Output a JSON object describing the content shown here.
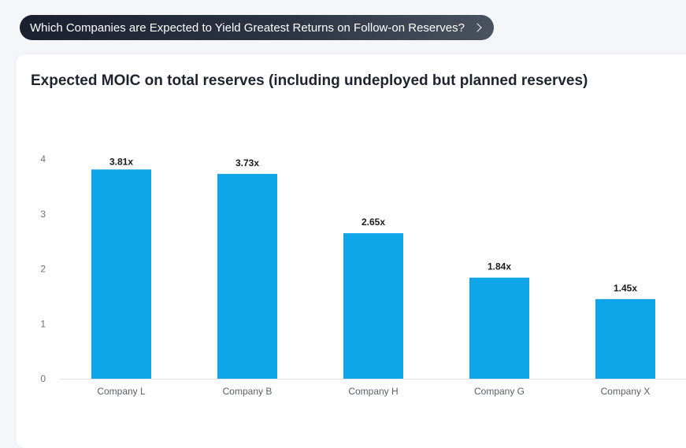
{
  "header": {
    "pill_text": "Which Companies are Expected to Yield Greatest Returns on Follow-on Reserves?",
    "pill_icon": "chevron-right-icon"
  },
  "colors": {
    "bar": "#0ea5e9",
    "pill_bg": "#1b2030"
  },
  "chart_data": {
    "type": "bar",
    "title": "Expected MOIC on total reserves (including undeployed but planned reserves)",
    "categories": [
      "Company L",
      "Company B",
      "Company H",
      "Company G",
      "Company X"
    ],
    "values": [
      3.81,
      3.73,
      2.65,
      1.84,
      1.45
    ],
    "value_labels": [
      "3.81x",
      "3.73x",
      "2.65x",
      "1.84x",
      "1.45x"
    ],
    "y_ticks": [
      "0",
      "1",
      "2",
      "3",
      "4"
    ],
    "y_tick_values": [
      0,
      1,
      2,
      3,
      4
    ],
    "ylim": [
      0,
      4
    ],
    "grid": false,
    "legend": "none"
  }
}
